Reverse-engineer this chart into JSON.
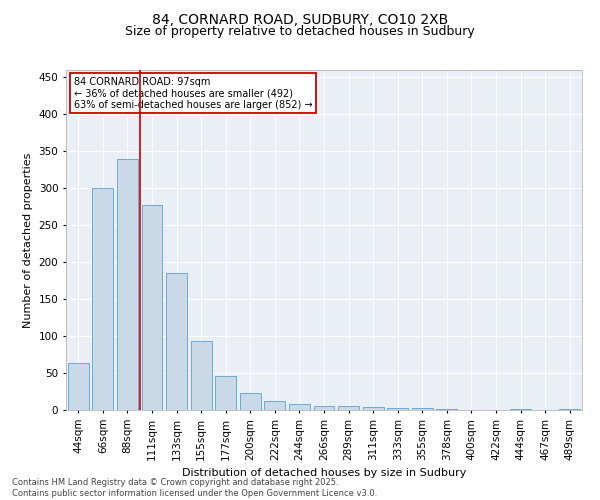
{
  "title1": "84, CORNARD ROAD, SUDBURY, CO10 2XB",
  "title2": "Size of property relative to detached houses in Sudbury",
  "xlabel": "Distribution of detached houses by size in Sudbury",
  "ylabel": "Number of detached properties",
  "categories": [
    "44sqm",
    "66sqm",
    "88sqm",
    "111sqm",
    "133sqm",
    "155sqm",
    "177sqm",
    "200sqm",
    "222sqm",
    "244sqm",
    "266sqm",
    "289sqm",
    "311sqm",
    "333sqm",
    "355sqm",
    "378sqm",
    "400sqm",
    "422sqm",
    "444sqm",
    "467sqm",
    "489sqm"
  ],
  "values": [
    63,
    300,
    340,
    278,
    185,
    93,
    46,
    23,
    12,
    8,
    6,
    5,
    4,
    3,
    3,
    2,
    0,
    0,
    2,
    0,
    2
  ],
  "bar_color": "#c9d9e8",
  "bar_edge_color": "#6aaad4",
  "highlight_line_index": 2,
  "highlight_line_color": "#cc0000",
  "annotation_line1": "84 CORNARD ROAD: 97sqm",
  "annotation_line2": "← 36% of detached houses are smaller (492)",
  "annotation_line3": "63% of semi-detached houses are larger (852) →",
  "annotation_box_color": "#cc0000",
  "ylim": [
    0,
    460
  ],
  "yticks": [
    0,
    50,
    100,
    150,
    200,
    250,
    300,
    350,
    400,
    450
  ],
  "bg_color": "#eaeef5",
  "footer_text": "Contains HM Land Registry data © Crown copyright and database right 2025.\nContains public sector information licensed under the Open Government Licence v3.0.",
  "title_fontsize": 10,
  "subtitle_fontsize": 9,
  "axis_label_fontsize": 8,
  "tick_fontsize": 7.5,
  "footer_fontsize": 6
}
